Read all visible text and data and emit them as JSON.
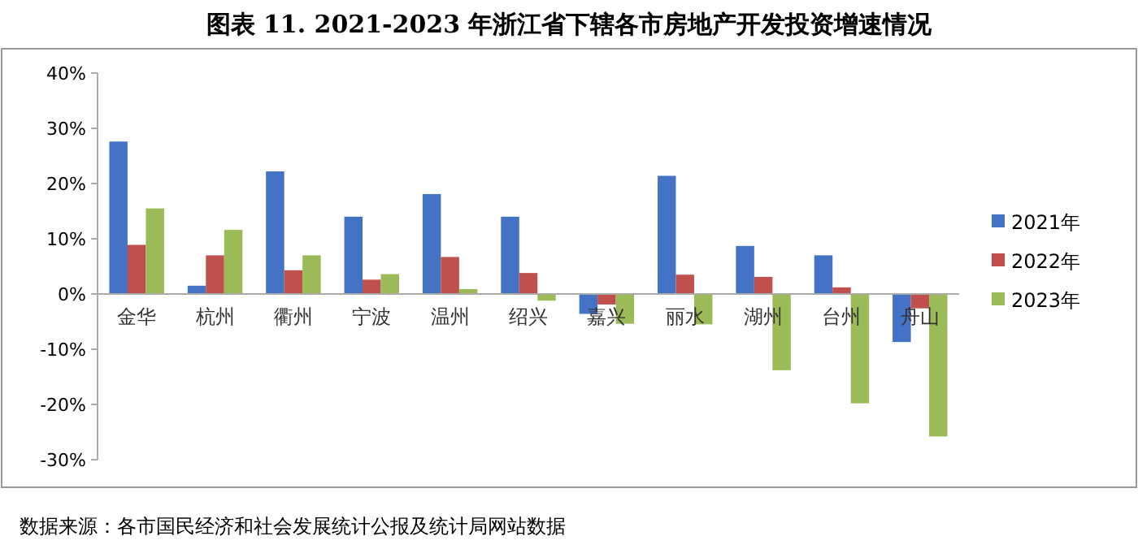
{
  "chart_data": {
    "type": "bar",
    "title": "图表 11. 2021-2023 年浙江省下辖各市房地产开发投资增速情况",
    "categories": [
      "金华",
      "杭州",
      "衢州",
      "宁波",
      "温州",
      "绍兴",
      "嘉兴",
      "丽水",
      "湖州",
      "台州",
      "舟山"
    ],
    "series": [
      {
        "name": "2021年",
        "color": "#4472c4",
        "values": [
          27.6,
          1.5,
          22.2,
          14.0,
          18.1,
          14.0,
          -3.6,
          21.4,
          8.7,
          7.0,
          -8.7
        ]
      },
      {
        "name": "2022年",
        "color": "#c0504d",
        "values": [
          8.9,
          7.0,
          4.3,
          2.6,
          6.7,
          3.8,
          -1.9,
          3.5,
          3.1,
          1.2,
          -2.6
        ]
      },
      {
        "name": "2023年",
        "color": "#9bbb59",
        "values": [
          15.5,
          11.6,
          7.0,
          3.6,
          0.9,
          -1.2,
          -5.4,
          -5.5,
          -13.8,
          -19.8,
          -25.8
        ]
      }
    ],
    "ylim": [
      -30,
      40
    ],
    "yticks": [
      {
        "value": -30,
        "label": "-30%"
      },
      {
        "value": -20,
        "label": "-20%"
      },
      {
        "value": -10,
        "label": "-10%"
      },
      {
        "value": 0,
        "label": "0%"
      },
      {
        "value": 10,
        "label": "10%"
      },
      {
        "value": 20,
        "label": "20%"
      },
      {
        "value": 30,
        "label": "30%"
      },
      {
        "value": 40,
        "label": "40%"
      }
    ],
    "legend": "right",
    "annotations": [
      "数据来源：各市国民经济和社会发展统计公报及统计局网站数据"
    ]
  }
}
